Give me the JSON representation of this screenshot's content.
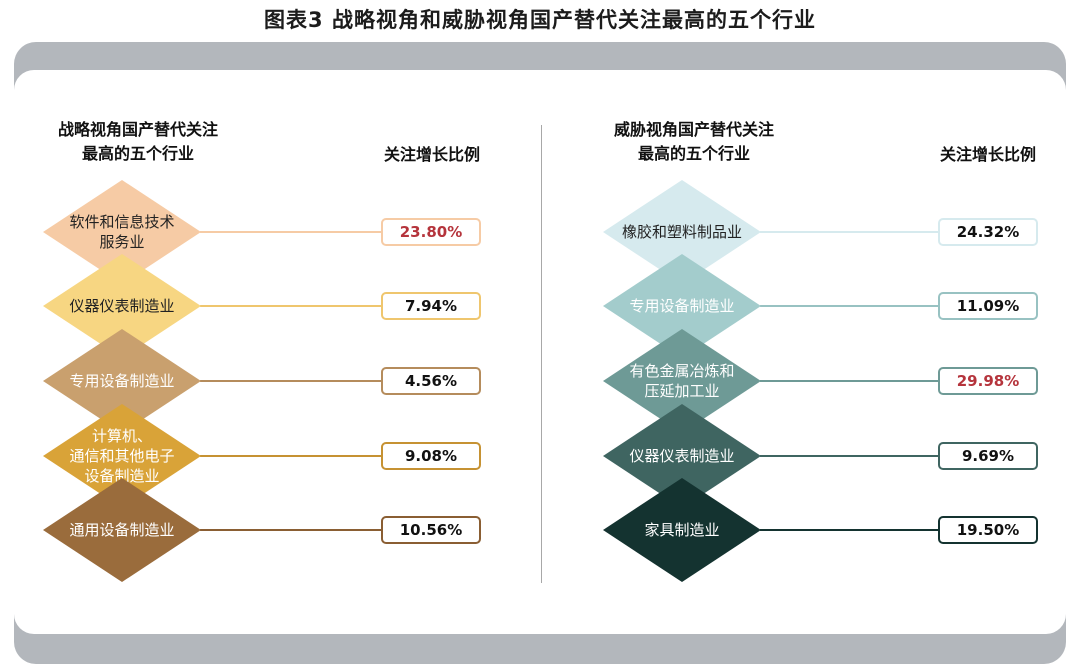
{
  "title": "图表3  战略视角和威胁视角国产替代关注最高的五个行业",
  "chart_data": [
    {
      "type": "table",
      "header_category": "战略视角国产替代关注\n最高的五个行业",
      "header_value": "关注增长比例",
      "rows": [
        {
          "label": "软件和信息技术\n服务业",
          "value": "23.80%",
          "value_num": 23.8,
          "color": "#f6cba5",
          "line": "#f6cba5",
          "highlight": true,
          "text_color": "#222222"
        },
        {
          "label": "仪器仪表制造业",
          "value": "7.94%",
          "value_num": 7.94,
          "color": "#f7d682",
          "line": "#efc66e",
          "highlight": false,
          "text_color": "#222222"
        },
        {
          "label": "专用设备制造业",
          "value": "4.56%",
          "value_num": 4.56,
          "color": "#c9a06e",
          "line": "#b58c5c",
          "highlight": false,
          "text_color": "#ffffff"
        },
        {
          "label": "计算机、\n通信和其他电子\n设备制造业",
          "value": "9.08%",
          "value_num": 9.08,
          "color": "#d9a338",
          "line": "#c69233",
          "highlight": false,
          "text_color": "#ffffff"
        },
        {
          "label": "通用设备制造业",
          "value": "10.56%",
          "value_num": 10.56,
          "color": "#9a6c3c",
          "line": "#8a5e33",
          "highlight": false,
          "text_color": "#ffffff"
        }
      ]
    },
    {
      "type": "table",
      "header_category": "威胁视角国产替代关注\n最高的五个行业",
      "header_value": "关注增长比例",
      "rows": [
        {
          "label": "橡胶和塑料制品业",
          "value": "24.32%",
          "value_num": 24.32,
          "color": "#d6eaee",
          "line": "#d6eaee",
          "highlight": false,
          "text_color": "#222222"
        },
        {
          "label": "专用设备制造业",
          "value": "11.09%",
          "value_num": 11.09,
          "color": "#a3cccc",
          "line": "#98c2c2",
          "highlight": false,
          "text_color": "#ffffff"
        },
        {
          "label": "有色金属冶炼和\n压延加工业",
          "value": "29.98%",
          "value_num": 29.98,
          "color": "#6e9a96",
          "line": "#6e9a96",
          "highlight": true,
          "text_color": "#ffffff"
        },
        {
          "label": "仪器仪表制造业",
          "value": "9.69%",
          "value_num": 9.69,
          "color": "#3f6561",
          "line": "#3f6561",
          "highlight": false,
          "text_color": "#ffffff"
        },
        {
          "label": "家具制造业",
          "value": "19.50%",
          "value_num": 19.5,
          "color": "#143330",
          "line": "#143330",
          "highlight": false,
          "text_color": "#ffffff"
        }
      ]
    }
  ],
  "highlight_color": "#b5343c",
  "frame_color": "#b3b7bc"
}
